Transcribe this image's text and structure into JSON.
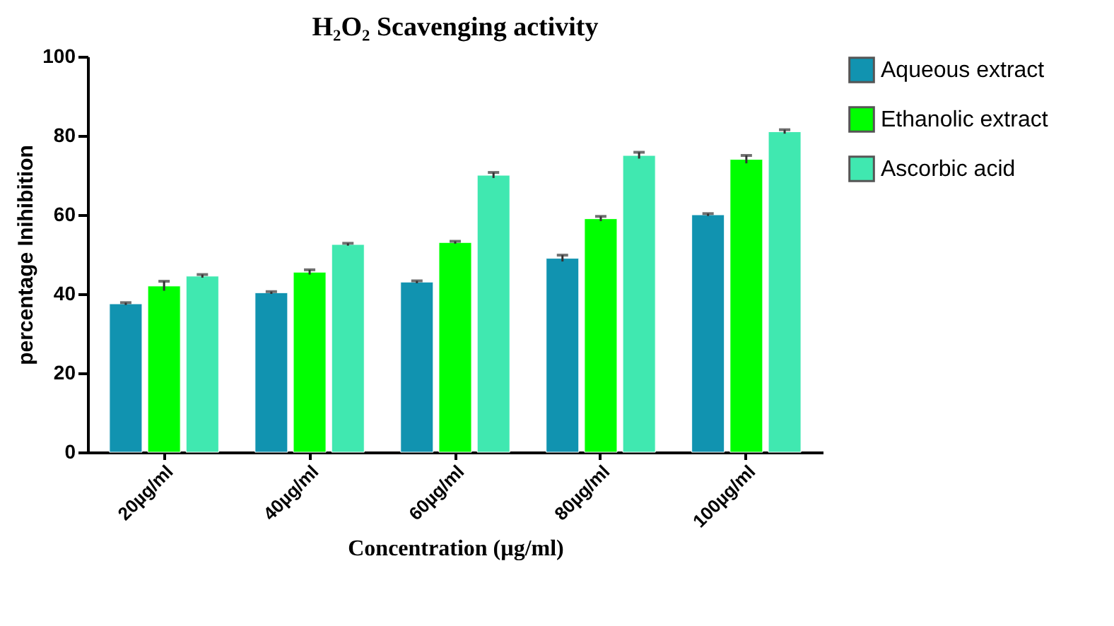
{
  "chart_data": {
    "type": "bar",
    "title": "H₂O₂ Scavenging activity",
    "xlabel": "Concentration (µg/ml)",
    "ylabel": "percentage Inihibition",
    "categories": [
      "20µg/ml",
      "40µg/ml",
      "60µg/ml",
      "80µg/ml",
      "100µg/ml"
    ],
    "series": [
      {
        "name": "Aqueous extract",
        "color": "#1193b0",
        "values": [
          37.5,
          40.3,
          43,
          49,
          60
        ],
        "errors": [
          0.3,
          0.3,
          0.3,
          0.8,
          0.3
        ]
      },
      {
        "name": "Ethanolic extract",
        "color": "#00ff00",
        "values": [
          42,
          45.5,
          53,
          59,
          74
        ],
        "errors": [
          1.2,
          0.6,
          0.3,
          0.6,
          1.0
        ]
      },
      {
        "name": "Ascorbic acid",
        "color": "#40e8b0",
        "values": [
          44.5,
          52.5,
          70,
          75,
          81
        ],
        "errors": [
          0.4,
          0.3,
          0.7,
          0.8,
          0.5
        ]
      }
    ],
    "ylim": [
      0,
      100
    ],
    "yticks": [
      0,
      20,
      40,
      60,
      80,
      100
    ],
    "grid": false,
    "legend": "top right"
  }
}
